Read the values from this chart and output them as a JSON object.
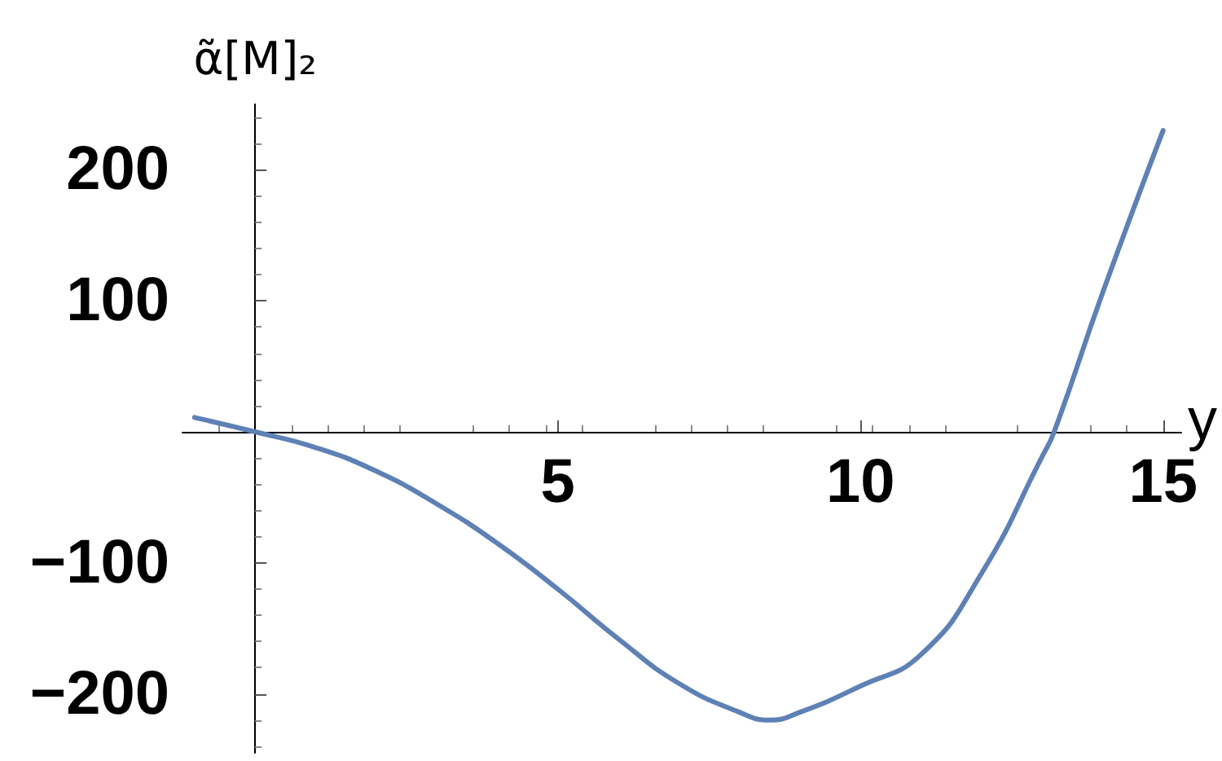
{
  "chart_data": {
    "type": "line",
    "ylabel": "α̃[M]₂",
    "xlabel": "y",
    "series": [
      {
        "color": "#5e81b5",
        "x": [
          -1,
          0,
          1,
          2,
          3,
          4,
          5,
          6,
          7,
          8,
          8.5,
          9,
          10,
          11,
          12,
          13,
          13.2,
          14,
          15
        ],
        "values": [
          11,
          0,
          -12,
          -30,
          -55,
          -85,
          -120,
          -158,
          -192,
          -214,
          -220,
          -214,
          -194,
          -170,
          -108,
          -19,
          0,
          106,
          230
        ]
      }
    ],
    "xlim": [
      -1.2,
      15.3
    ],
    "ylim": [
      -245,
      250
    ],
    "xticks": [
      5,
      10,
      15
    ],
    "yticks": [
      -200,
      -100,
      100,
      200
    ],
    "grid": false,
    "marker": "none",
    "line_style": "solid"
  }
}
